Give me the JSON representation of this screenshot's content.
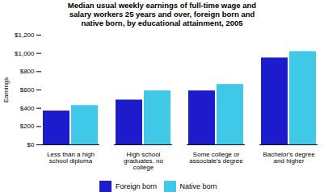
{
  "chart_data": {
    "type": "bar",
    "title": "Median usual weekly earnings of full-time wage and\nsalary workers 25 years and over, foreign born and\nnative born, by educational attainment, 2005",
    "categories": [
      "Less than a high\nschool diploma",
      "High school\ngraduates, no\ncollege",
      "Some college or\nassociate's degree",
      "Bachelor's degree\nand higher"
    ],
    "series": [
      {
        "name": "Foreign born",
        "color": "#1c1ccc",
        "values": [
          370,
          490,
          590,
          950
        ]
      },
      {
        "name": "Native born",
        "color": "#40c8e8",
        "values": [
          430,
          590,
          660,
          1020
        ]
      }
    ],
    "ylabel": "Earnings",
    "ylim": [
      0,
      1200
    ],
    "yticks": [
      {
        "value": 0,
        "label": "$0"
      },
      {
        "value": 200,
        "label": "$200"
      },
      {
        "value": 400,
        "label": "$400"
      },
      {
        "value": 600,
        "label": "$600"
      },
      {
        "value": 800,
        "label": "$800"
      },
      {
        "value": 1000,
        "label": "$1,000"
      },
      {
        "value": 1200,
        "label": "$1,200"
      }
    ],
    "legend": "bottom",
    "grid": false
  }
}
